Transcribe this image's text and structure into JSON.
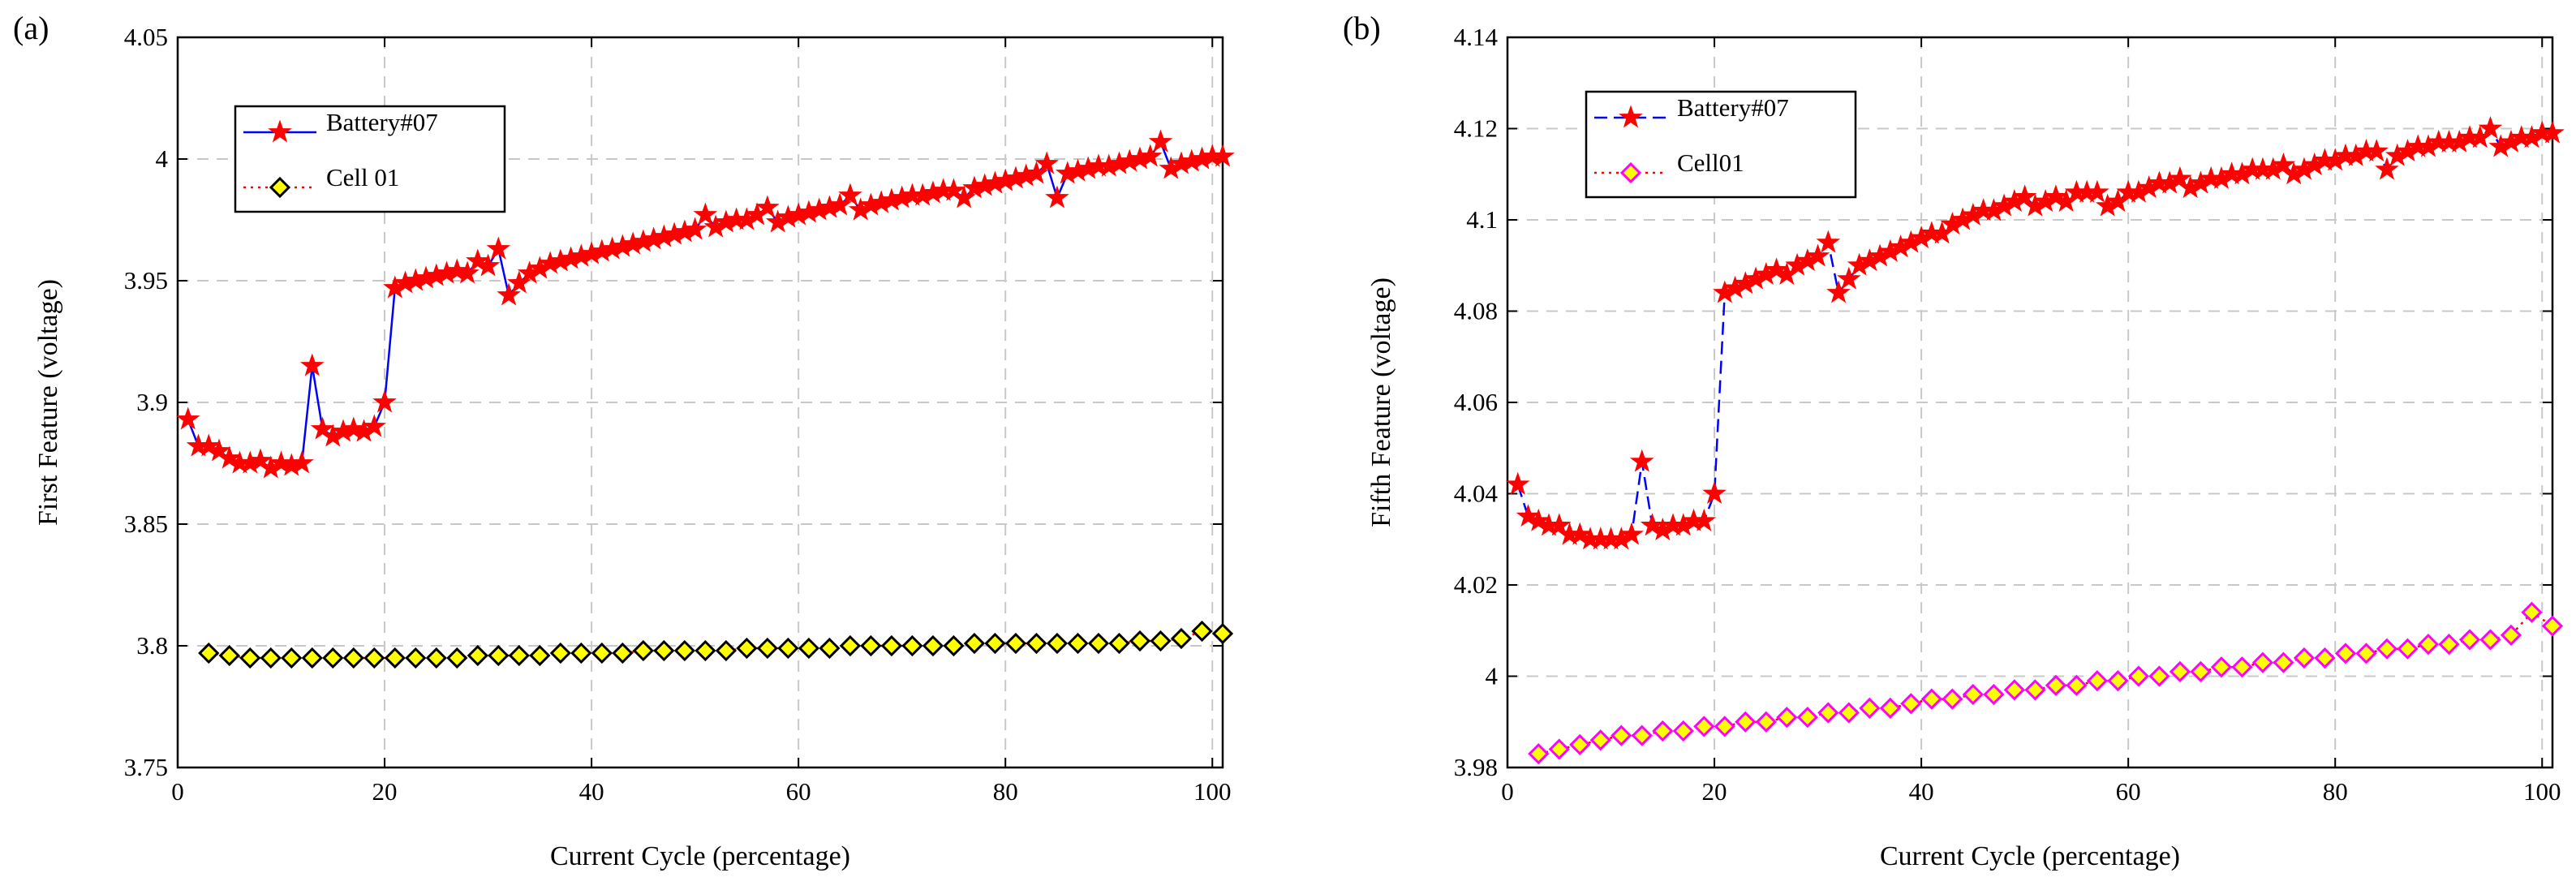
{
  "chart_data": [
    {
      "type": "line",
      "panel_label": "(a)",
      "xlabel": "Current Cycle (percentage)",
      "ylabel": "First Feature (voltage)",
      "xlim": [
        0,
        101
      ],
      "ylim": [
        3.75,
        4.05
      ],
      "xticks": [
        0,
        20,
        40,
        60,
        80,
        100
      ],
      "yticks": [
        3.75,
        3.8,
        3.85,
        3.9,
        3.95,
        4.0,
        4.05
      ],
      "xtick_labels": [
        "0",
        "20",
        "40",
        "60",
        "80",
        "100"
      ],
      "ytick_labels": [
        "3.75",
        "3.8",
        "3.85",
        "3.9",
        "3.95",
        "4",
        "4.05"
      ],
      "grid": true,
      "legend_position": "upper-left",
      "series": [
        {
          "name": "Battery#07",
          "line_color": "#0000ff",
          "line_style": "solid",
          "marker": "star",
          "marker_color": "#ff0000",
          "x": [
            1,
            2,
            3,
            4,
            5,
            6,
            7,
            8,
            9,
            10,
            11,
            12,
            13,
            14,
            15,
            16,
            17,
            18,
            19,
            20,
            21,
            22,
            23,
            24,
            25,
            26,
            27,
            28,
            29,
            30,
            31,
            32,
            33,
            34,
            35,
            36,
            37,
            38,
            39,
            40,
            41,
            42,
            43,
            44,
            45,
            46,
            47,
            48,
            49,
            50,
            51,
            52,
            53,
            54,
            55,
            56,
            57,
            58,
            59,
            60,
            61,
            62,
            63,
            64,
            65,
            66,
            67,
            68,
            69,
            70,
            71,
            72,
            73,
            74,
            75,
            76,
            77,
            78,
            79,
            80,
            81,
            82,
            83,
            84,
            85,
            86,
            87,
            88,
            89,
            90,
            91,
            92,
            93,
            94,
            95,
            96,
            97,
            98,
            99,
            100,
            101
          ],
          "values": [
            3.893,
            3.882,
            3.882,
            3.88,
            3.877,
            3.875,
            3.875,
            3.876,
            3.873,
            3.875,
            3.874,
            3.875,
            3.915,
            3.889,
            3.886,
            3.888,
            3.889,
            3.888,
            3.89,
            3.9,
            3.947,
            3.949,
            3.95,
            3.951,
            3.952,
            3.953,
            3.954,
            3.953,
            3.958,
            3.956,
            3.963,
            3.944,
            3.949,
            3.953,
            3.955,
            3.957,
            3.958,
            3.959,
            3.96,
            3.961,
            3.962,
            3.963,
            3.964,
            3.965,
            3.966,
            3.967,
            3.968,
            3.969,
            3.97,
            3.971,
            3.977,
            3.972,
            3.974,
            3.975,
            3.975,
            3.977,
            3.98,
            3.974,
            3.976,
            3.977,
            3.978,
            3.979,
            3.98,
            3.981,
            3.985,
            3.979,
            3.981,
            3.982,
            3.983,
            3.984,
            3.985,
            3.985,
            3.986,
            3.987,
            3.987,
            3.984,
            3.988,
            3.989,
            3.99,
            3.991,
            3.992,
            3.993,
            3.994,
            3.998,
            3.984,
            3.994,
            3.995,
            3.996,
            3.997,
            3.997,
            3.998,
            3.999,
            4.0,
            4.001,
            4.007,
            3.996,
            3.998,
            3.999,
            4.0,
            4.001,
            4.001
          ]
        },
        {
          "name": "Cell 01",
          "line_color": "#ff0000",
          "line_style": "dotted",
          "marker": "diamond",
          "marker_color": "#ffff00",
          "marker_edge": "#000000",
          "x": [
            3,
            5,
            7,
            9,
            11,
            13,
            15,
            17,
            19,
            21,
            23,
            25,
            27,
            29,
            31,
            33,
            35,
            37,
            39,
            41,
            43,
            45,
            47,
            49,
            51,
            53,
            55,
            57,
            59,
            61,
            63,
            65,
            67,
            69,
            71,
            73,
            75,
            77,
            79,
            81,
            83,
            85,
            87,
            89,
            91,
            93,
            95,
            97,
            99,
            101
          ],
          "values": [
            3.797,
            3.796,
            3.795,
            3.795,
            3.795,
            3.795,
            3.795,
            3.795,
            3.795,
            3.795,
            3.795,
            3.795,
            3.795,
            3.796,
            3.796,
            3.796,
            3.796,
            3.797,
            3.797,
            3.797,
            3.797,
            3.798,
            3.798,
            3.798,
            3.798,
            3.798,
            3.799,
            3.799,
            3.799,
            3.799,
            3.799,
            3.8,
            3.8,
            3.8,
            3.8,
            3.8,
            3.8,
            3.801,
            3.801,
            3.801,
            3.801,
            3.801,
            3.801,
            3.801,
            3.801,
            3.802,
            3.802,
            3.803,
            3.806,
            3.805
          ]
        }
      ]
    },
    {
      "type": "line",
      "panel_label": "(b)",
      "xlabel": "Current Cycle (percentage)",
      "ylabel": "Fifth Feature (voltage)",
      "xlim": [
        0,
        101
      ],
      "ylim": [
        3.98,
        4.14
      ],
      "xticks": [
        0,
        20,
        40,
        60,
        80,
        100
      ],
      "yticks": [
        3.98,
        4.0,
        4.02,
        4.04,
        4.06,
        4.08,
        4.1,
        4.12,
        4.14
      ],
      "xtick_labels": [
        "0",
        "20",
        "40",
        "60",
        "80",
        "100"
      ],
      "ytick_labels": [
        "3.98",
        "4",
        "4.02",
        "4.04",
        "4.06",
        "4.08",
        "4.1",
        "4.12",
        "4.14"
      ],
      "grid": true,
      "legend_position": "upper-left",
      "series": [
        {
          "name": "Battery#07",
          "line_color": "#0000ff",
          "line_style": "dashed",
          "marker": "star",
          "marker_color": "#ff0000",
          "x": [
            1,
            2,
            3,
            4,
            5,
            6,
            7,
            8,
            9,
            10,
            11,
            12,
            13,
            14,
            15,
            16,
            17,
            18,
            19,
            20,
            21,
            22,
            23,
            24,
            25,
            26,
            27,
            28,
            29,
            30,
            31,
            32,
            33,
            34,
            35,
            36,
            37,
            38,
            39,
            40,
            41,
            42,
            43,
            44,
            45,
            46,
            47,
            48,
            49,
            50,
            51,
            52,
            53,
            54,
            55,
            56,
            57,
            58,
            59,
            60,
            61,
            62,
            63,
            64,
            65,
            66,
            67,
            68,
            69,
            70,
            71,
            72,
            73,
            74,
            75,
            76,
            77,
            78,
            79,
            80,
            81,
            82,
            83,
            84,
            85,
            86,
            87,
            88,
            89,
            90,
            91,
            92,
            93,
            94,
            95,
            96,
            97,
            98,
            99,
            100,
            101
          ],
          "values": [
            4.042,
            4.035,
            4.034,
            4.033,
            4.033,
            4.031,
            4.031,
            4.03,
            4.03,
            4.03,
            4.03,
            4.031,
            4.047,
            4.033,
            4.032,
            4.033,
            4.033,
            4.034,
            4.034,
            4.04,
            4.084,
            4.085,
            4.086,
            4.087,
            4.088,
            4.089,
            4.088,
            4.09,
            4.091,
            4.092,
            4.095,
            4.084,
            4.087,
            4.09,
            4.091,
            4.092,
            4.093,
            4.094,
            4.095,
            4.096,
            4.097,
            4.097,
            4.099,
            4.1,
            4.101,
            4.102,
            4.102,
            4.103,
            4.104,
            4.105,
            4.103,
            4.104,
            4.105,
            4.104,
            4.106,
            4.106,
            4.106,
            4.103,
            4.104,
            4.106,
            4.106,
            4.107,
            4.108,
            4.108,
            4.109,
            4.107,
            4.108,
            4.109,
            4.109,
            4.11,
            4.11,
            4.111,
            4.111,
            4.111,
            4.112,
            4.11,
            4.111,
            4.112,
            4.113,
            4.113,
            4.114,
            4.114,
            4.115,
            4.115,
            4.111,
            4.114,
            4.115,
            4.116,
            4.116,
            4.117,
            4.117,
            4.117,
            4.118,
            4.118,
            4.12,
            4.116,
            4.117,
            4.118,
            4.118,
            4.119,
            4.119
          ]
        },
        {
          "name": "Cell01",
          "line_color": "#ff0000",
          "line_style": "dotted",
          "marker": "diamond",
          "marker_color": "#ffff00",
          "marker_edge": "#ff00ff",
          "x": [
            3,
            5,
            7,
            9,
            11,
            13,
            15,
            17,
            19,
            21,
            23,
            25,
            27,
            29,
            31,
            33,
            35,
            37,
            39,
            41,
            43,
            45,
            47,
            49,
            51,
            53,
            55,
            57,
            59,
            61,
            63,
            65,
            67,
            69,
            71,
            73,
            75,
            77,
            79,
            81,
            83,
            85,
            87,
            89,
            91,
            93,
            95,
            97,
            99,
            101
          ],
          "values": [
            3.983,
            3.984,
            3.985,
            3.986,
            3.987,
            3.987,
            3.988,
            3.988,
            3.989,
            3.989,
            3.99,
            3.99,
            3.991,
            3.991,
            3.992,
            3.992,
            3.993,
            3.993,
            3.994,
            3.995,
            3.995,
            3.996,
            3.996,
            3.997,
            3.997,
            3.998,
            3.998,
            3.999,
            3.999,
            4.0,
            4.0,
            4.001,
            4.001,
            4.002,
            4.002,
            4.003,
            4.003,
            4.004,
            4.004,
            4.005,
            4.005,
            4.006,
            4.006,
            4.007,
            4.007,
            4.008,
            4.008,
            4.009,
            4.014,
            4.011
          ]
        }
      ]
    }
  ]
}
